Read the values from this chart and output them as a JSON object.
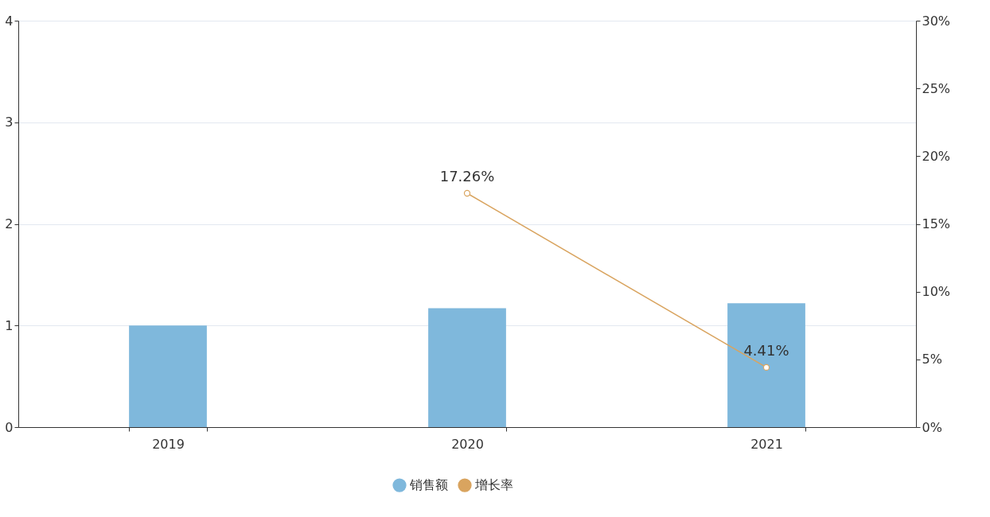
{
  "chart_data": {
    "type": "bar",
    "categories": [
      "2019",
      "2020",
      "2021"
    ],
    "series": [
      {
        "name": "销售额",
        "color": "#7fb8dc",
        "values": [
          1.0,
          1.17,
          1.22
        ]
      },
      {
        "name": "增长率",
        "type": "line",
        "axis": "y2",
        "color": "#d9a45f",
        "values": [
          null,
          17.26,
          4.41
        ],
        "value_labels": [
          null,
          "17.26%",
          "4.41%"
        ]
      }
    ],
    "ylim": [
      0,
      4
    ],
    "yticks": [
      0,
      1,
      2,
      3,
      4
    ],
    "y2lim": [
      0,
      30
    ],
    "y2ticks": [
      {
        "value": 0,
        "label": "0%"
      },
      {
        "value": 5,
        "label": "5%"
      },
      {
        "value": 10,
        "label": "10%"
      },
      {
        "value": 15,
        "label": "15%"
      },
      {
        "value": 20,
        "label": "20%"
      },
      {
        "value": 25,
        "label": "25%"
      },
      {
        "value": 30,
        "label": "30%"
      }
    ],
    "grid": "y",
    "legend": "bottom",
    "marker": "circle",
    "line_style": "solid"
  }
}
